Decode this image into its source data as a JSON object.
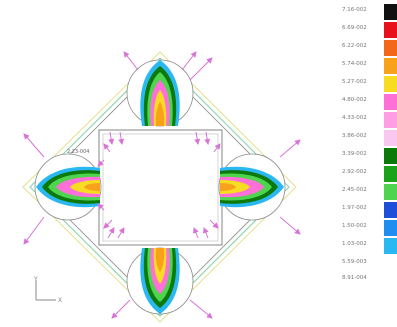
{
  "legend": {
    "entries": [
      {
        "label": "7.16-002",
        "color": "#111111"
      },
      {
        "label": "6.69-002",
        "color": "#e8101a"
      },
      {
        "label": "6.22-002",
        "color": "#f2671a"
      },
      {
        "label": "5.74-002",
        "color": "#f7a21a"
      },
      {
        "label": "5.27-002",
        "color": "#f8dc22"
      },
      {
        "label": "4.80-002",
        "color": "#ff6fd8"
      },
      {
        "label": "4.33-002",
        "color": "#ff9ee4"
      },
      {
        "label": "3.86-002",
        "color": "#f8c8f0"
      },
      {
        "label": "3.39-002",
        "color": "#0b7a0b"
      },
      {
        "label": "2.92-002",
        "color": "#1aa31a"
      },
      {
        "label": "2.45-002",
        "color": "#4fd44f"
      },
      {
        "label": "1.97-002",
        "color": "#1d4fd8"
      },
      {
        "label": "1.50-002",
        "color": "#1f8ef0"
      },
      {
        "label": "1.03-002",
        "color": "#2ab8f2"
      },
      {
        "label": "5.59-003",
        "color": "#ffffff"
      }
    ],
    "end_label": "8.91-004"
  },
  "probe_label": "2.23-004",
  "axes": {
    "y": "Y",
    "x": "X"
  },
  "colors": {
    "outline": "#8a8a8a",
    "inner_square": "#777777",
    "outer_contour_yellow": "#e6e08a",
    "outer_contour_green": "#7fd3a0",
    "arrow": "#d873d8"
  }
}
